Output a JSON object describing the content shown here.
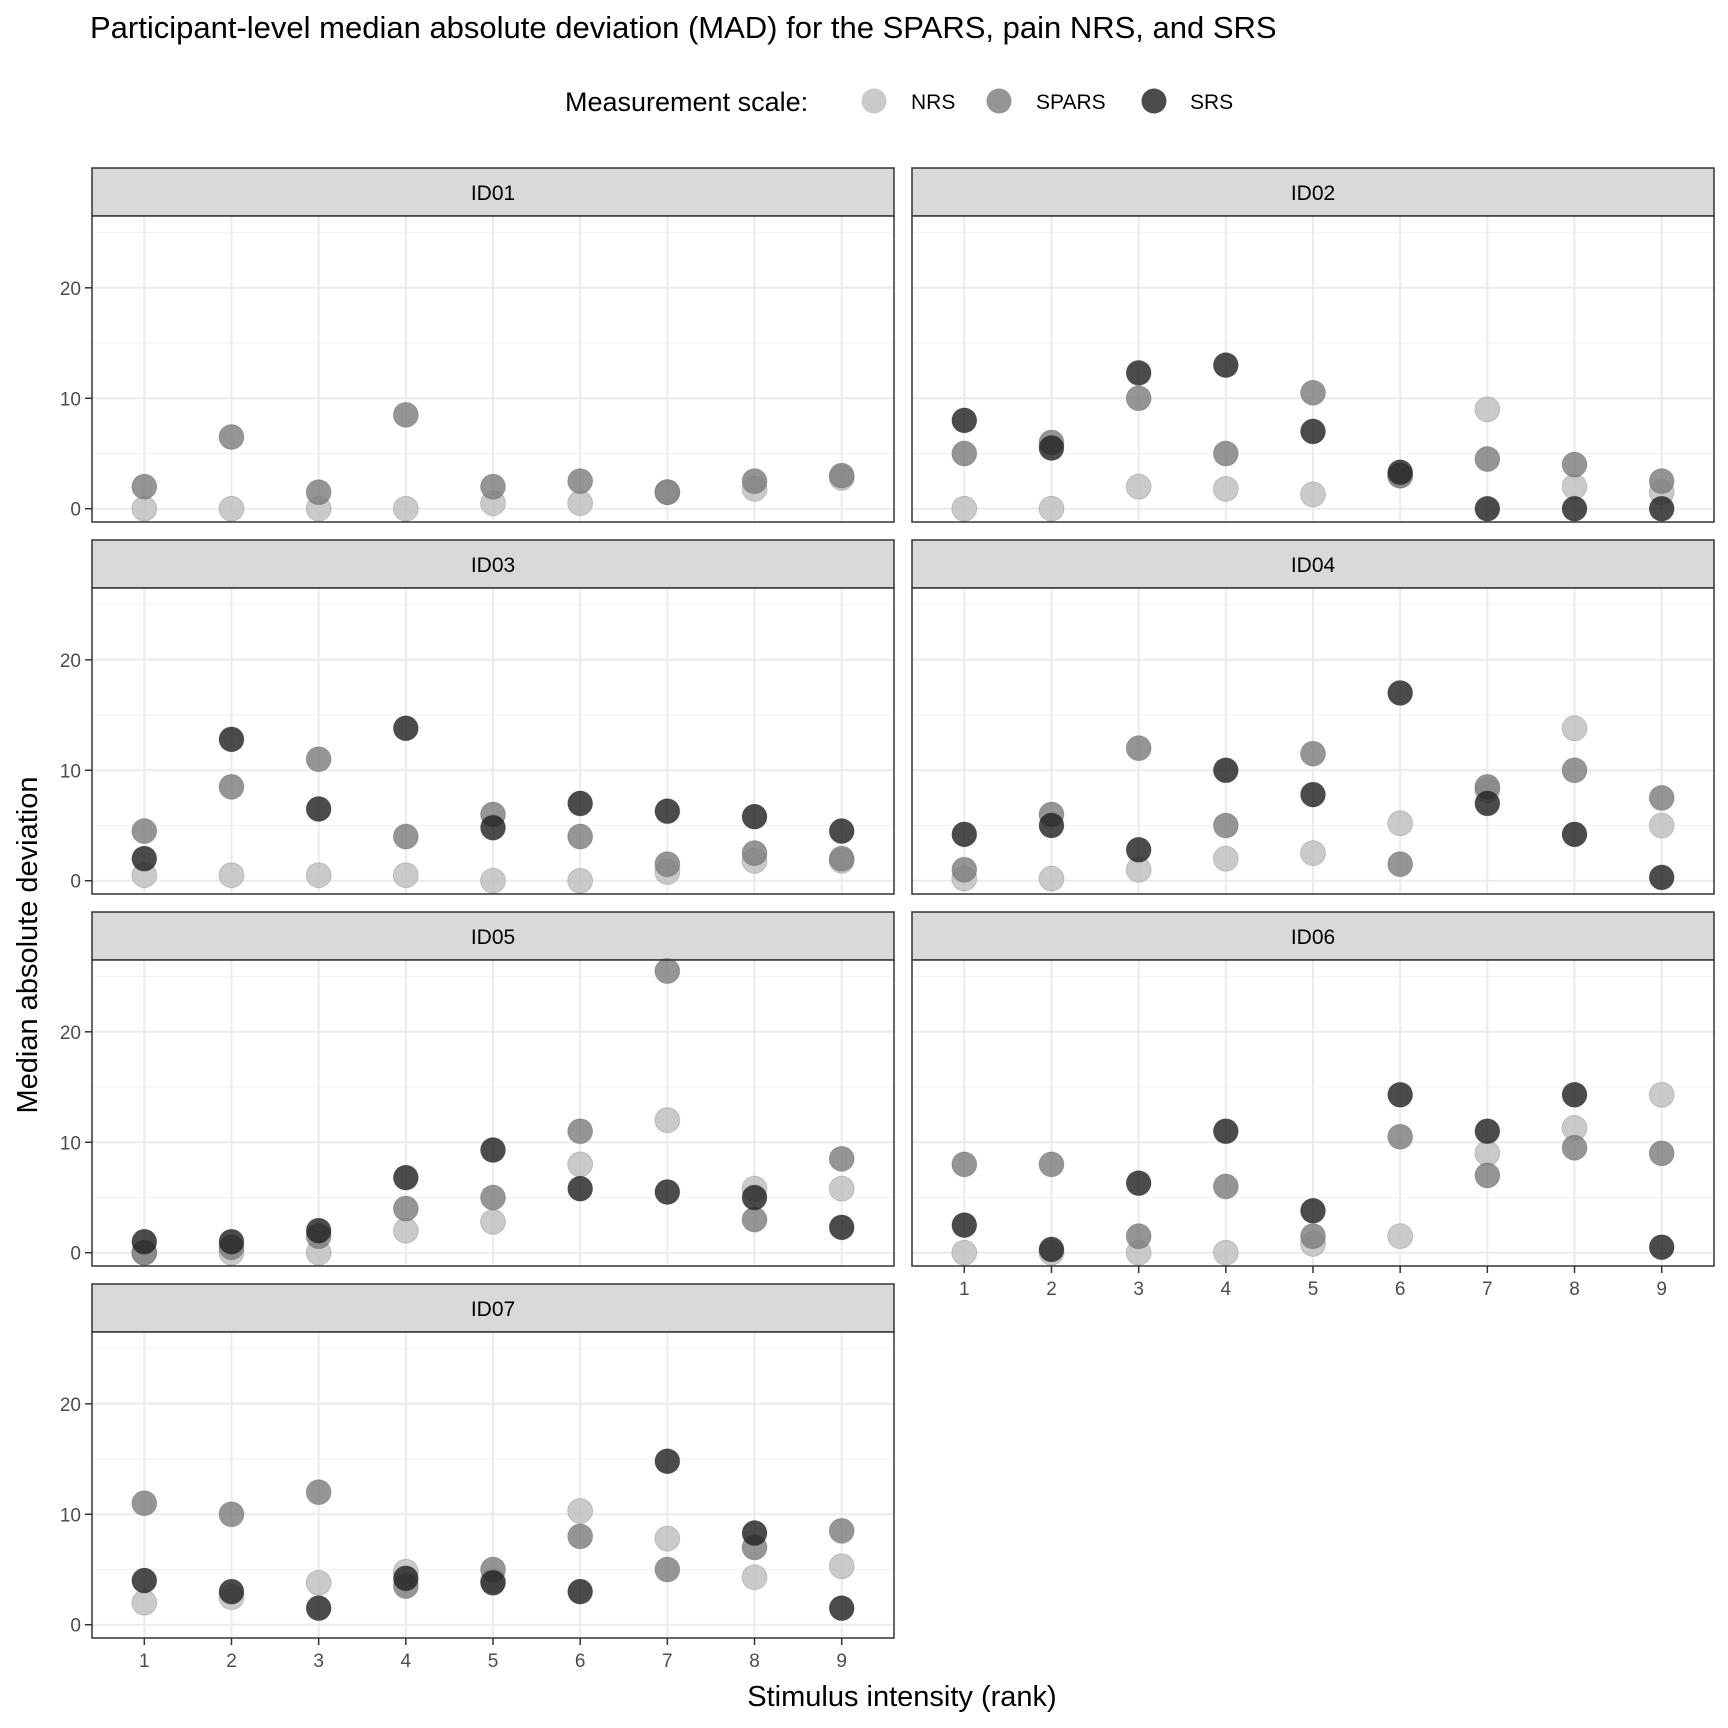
{
  "chart_data": {
    "type": "scatter",
    "title": "Participant-level median absolute deviation (MAD) for the SPARS, pain NRS, and SRS",
    "xlabel": "Stimulus intensity (rank)",
    "ylabel": "Median absolute deviation",
    "legend_title": "Measurement scale:",
    "legend_position": "top",
    "grid": true,
    "xlim": [
      0.4,
      9.6
    ],
    "ylim": [
      -1.2,
      26.5
    ],
    "x_ticks": [
      1,
      2,
      3,
      4,
      5,
      6,
      7,
      8,
      9
    ],
    "y_ticks": [
      0,
      10,
      20
    ],
    "series_styles": [
      {
        "name": "NRS",
        "color": "#bdbdbd"
      },
      {
        "name": "SPARS",
        "color": "#7a7a7a"
      },
      {
        "name": "SRS",
        "color": "#1e1e1e"
      }
    ],
    "panels": [
      {
        "id": "ID01",
        "series": {
          "NRS": [
            0,
            0,
            0,
            0,
            0.5,
            0.5,
            1.5,
            1.8,
            2.8
          ],
          "SPARS": [
            2,
            6.5,
            1.5,
            8.5,
            2,
            2.5,
            1.5,
            2.5,
            3
          ],
          "SRS": [
            null,
            null,
            null,
            null,
            null,
            null,
            null,
            null,
            null
          ]
        }
      },
      {
        "id": "ID02",
        "series": {
          "NRS": [
            0,
            0,
            2,
            1.8,
            1.3,
            3,
            9,
            2,
            1.5
          ],
          "SPARS": [
            5,
            6,
            10,
            5,
            10.5,
            3,
            4.5,
            4,
            2.5
          ],
          "SRS": [
            8,
            5.5,
            12.3,
            13,
            7,
            3.3,
            0,
            0,
            0
          ]
        }
      },
      {
        "id": "ID03",
        "series": {
          "NRS": [
            0.5,
            0.5,
            0.5,
            0.5,
            0,
            0,
            0.8,
            1.8,
            1.8
          ],
          "SPARS": [
            4.5,
            8.5,
            11,
            4,
            6,
            4,
            1.5,
            2.5,
            2
          ],
          "SRS": [
            2,
            12.8,
            6.5,
            13.8,
            4.8,
            7,
            6.3,
            5.8,
            4.5
          ]
        }
      },
      {
        "id": "ID04",
        "series": {
          "NRS": [
            0.2,
            0.2,
            1,
            2,
            2.5,
            5.2,
            8.2,
            13.8,
            5
          ],
          "SPARS": [
            1,
            6,
            12,
            5,
            11.5,
            1.5,
            8.5,
            10,
            7.5
          ],
          "SRS": [
            4.2,
            5,
            2.8,
            10,
            7.8,
            17,
            7,
            4.2,
            0.3
          ]
        }
      },
      {
        "id": "ID05",
        "series": {
          "NRS": [
            0,
            0,
            0,
            2,
            2.8,
            8,
            12,
            5.8,
            5.8
          ],
          "SPARS": [
            0,
            0.5,
            1.5,
            4,
            5,
            11,
            25.5,
            3,
            8.5
          ],
          "SRS": [
            1,
            1,
            2,
            6.8,
            9.3,
            5.8,
            5.5,
            5,
            2.3
          ]
        }
      },
      {
        "id": "ID06",
        "series": {
          "NRS": [
            0,
            0,
            0,
            0,
            0.8,
            1.5,
            9,
            11.3,
            14.3
          ],
          "SPARS": [
            8,
            8,
            1.5,
            6,
            1.5,
            10.5,
            7,
            9.5,
            9
          ],
          "SRS": [
            2.5,
            0.3,
            6.3,
            11,
            3.8,
            14.3,
            11,
            14.3,
            0.5
          ]
        }
      },
      {
        "id": "ID07",
        "series": {
          "NRS": [
            2,
            2.5,
            3.8,
            4.8,
            4,
            10.3,
            7.8,
            4.3,
            5.3
          ],
          "SPARS": [
            11,
            10,
            12,
            3.5,
            5,
            8,
            5,
            7,
            8.5
          ],
          "SRS": [
            4,
            3,
            1.5,
            4.2,
            3.8,
            3,
            14.8,
            8.3,
            1.5
          ]
        }
      }
    ]
  }
}
